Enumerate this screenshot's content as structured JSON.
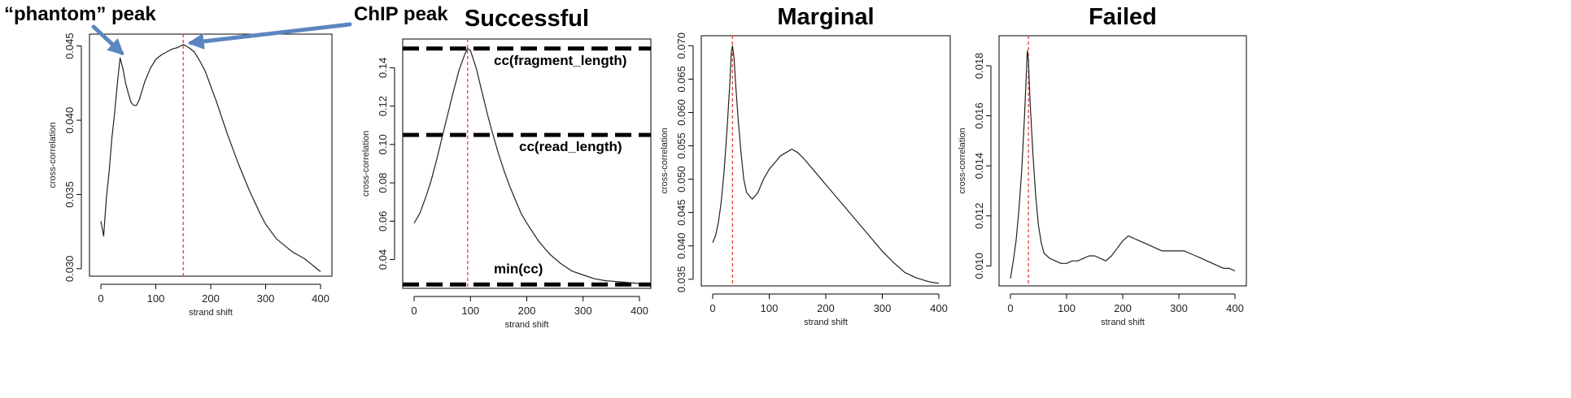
{
  "chart_data": [
    {
      "type": "line",
      "title": "",
      "xlabel": "strand shift",
      "ylabel": "cross-correlation",
      "xlim": [
        0,
        400
      ],
      "ylim": [
        0.0295,
        0.0458
      ],
      "xticks": [
        0,
        100,
        200,
        300,
        400
      ],
      "yticks": [
        0.03,
        0.035,
        0.04,
        0.045
      ],
      "ytick_labels": [
        "0.030",
        "0.035",
        "0.040",
        "0.045"
      ],
      "x": [
        0,
        5,
        10,
        15,
        20,
        25,
        30,
        35,
        40,
        45,
        50,
        55,
        60,
        65,
        70,
        75,
        80,
        90,
        100,
        110,
        120,
        130,
        140,
        150,
        160,
        170,
        180,
        190,
        200,
        210,
        220,
        230,
        240,
        250,
        260,
        270,
        280,
        290,
        300,
        310,
        320,
        330,
        340,
        350,
        360,
        370,
        380,
        390,
        400
      ],
      "y": [
        0.0332,
        0.0322,
        0.0348,
        0.0365,
        0.0388,
        0.0405,
        0.0425,
        0.0442,
        0.0435,
        0.0425,
        0.0418,
        0.0412,
        0.041,
        0.041,
        0.0414,
        0.042,
        0.0426,
        0.0435,
        0.0441,
        0.0444,
        0.0446,
        0.0448,
        0.0449,
        0.0451,
        0.0449,
        0.0446,
        0.044,
        0.0433,
        0.0423,
        0.0413,
        0.0402,
        0.0391,
        0.0381,
        0.0371,
        0.0362,
        0.0353,
        0.0345,
        0.0337,
        0.033,
        0.0325,
        0.032,
        0.0317,
        0.0314,
        0.0311,
        0.0309,
        0.0307,
        0.0304,
        0.0301,
        0.0298
      ],
      "vline_x": 150,
      "hlines": [],
      "annotations": [
        {
          "text": "“phantom” peak",
          "target_x": 35,
          "target_y": 0.0442
        },
        {
          "text": "ChIP peak",
          "target_x": 152,
          "target_y": 0.0451
        }
      ]
    },
    {
      "type": "line",
      "title": "Successful",
      "xlabel": "strand shift",
      "ylabel": "cross-correlation",
      "xlim": [
        0,
        400
      ],
      "ylim": [
        0.025,
        0.155
      ],
      "xticks": [
        0,
        100,
        200,
        300,
        400
      ],
      "yticks": [
        0.04,
        0.06,
        0.08,
        0.1,
        0.12,
        0.14
      ],
      "ytick_labels": [
        "0.04",
        "0.06",
        "0.08",
        "0.10",
        "0.12",
        "0.14"
      ],
      "x": [
        0,
        10,
        20,
        30,
        40,
        50,
        60,
        70,
        80,
        90,
        95,
        100,
        110,
        120,
        130,
        140,
        150,
        160,
        170,
        180,
        190,
        200,
        220,
        240,
        260,
        280,
        300,
        320,
        340,
        360,
        380,
        400
      ],
      "y": [
        0.059,
        0.064,
        0.072,
        0.081,
        0.092,
        0.104,
        0.116,
        0.128,
        0.139,
        0.147,
        0.15,
        0.149,
        0.14,
        0.128,
        0.116,
        0.105,
        0.095,
        0.086,
        0.078,
        0.071,
        0.064,
        0.059,
        0.05,
        0.043,
        0.038,
        0.034,
        0.032,
        0.03,
        0.029,
        0.0285,
        0.028,
        0.0275
      ],
      "vline_x": 95,
      "hlines": [
        {
          "y": 0.15,
          "label": "cc(fragment_length)"
        },
        {
          "y": 0.105,
          "label": "cc(read_length)"
        },
        {
          "y": 0.027,
          "label": "min(cc)"
        }
      ],
      "annotations": []
    },
    {
      "type": "line",
      "title": "Marginal",
      "xlabel": "strand shift",
      "ylabel": "cross-correlation",
      "xlim": [
        0,
        400
      ],
      "ylim": [
        0.034,
        0.0715
      ],
      "xticks": [
        0,
        100,
        200,
        300,
        400
      ],
      "yticks": [
        0.035,
        0.04,
        0.045,
        0.05,
        0.055,
        0.06,
        0.065,
        0.07
      ],
      "ytick_labels": [
        "0.035",
        "0.040",
        "0.045",
        "0.050",
        "0.055",
        "0.060",
        "0.065",
        "0.070"
      ],
      "x": [
        0,
        5,
        10,
        15,
        20,
        25,
        30,
        33,
        35,
        38,
        40,
        45,
        50,
        55,
        60,
        70,
        80,
        90,
        100,
        110,
        120,
        130,
        140,
        150,
        160,
        170,
        180,
        200,
        220,
        240,
        260,
        280,
        300,
        320,
        340,
        360,
        380,
        390,
        400
      ],
      "y": [
        0.0405,
        0.0415,
        0.0435,
        0.0465,
        0.051,
        0.057,
        0.064,
        0.069,
        0.07,
        0.068,
        0.065,
        0.059,
        0.054,
        0.05,
        0.048,
        0.047,
        0.048,
        0.05,
        0.0515,
        0.0525,
        0.0535,
        0.054,
        0.0545,
        0.054,
        0.0532,
        0.0522,
        0.0512,
        0.0492,
        0.0472,
        0.0452,
        0.0432,
        0.0412,
        0.0392,
        0.0375,
        0.036,
        0.0352,
        0.0347,
        0.0345,
        0.0344
      ],
      "vline_x": 35,
      "hlines": [],
      "annotations": []
    },
    {
      "type": "line",
      "title": "Failed",
      "xlabel": "strand shift",
      "ylabel": "cross-correlation",
      "xlim": [
        0,
        400
      ],
      "ylim": [
        0.0092,
        0.0192
      ],
      "xticks": [
        0,
        100,
        200,
        300,
        400
      ],
      "yticks": [
        0.01,
        0.012,
        0.014,
        0.016,
        0.018
      ],
      "ytick_labels": [
        "0.010",
        "0.012",
        "0.014",
        "0.016",
        "0.018"
      ],
      "x": [
        0,
        5,
        10,
        15,
        20,
        25,
        28,
        30,
        32,
        35,
        40,
        45,
        50,
        55,
        60,
        70,
        80,
        90,
        100,
        110,
        120,
        130,
        140,
        150,
        160,
        170,
        180,
        190,
        200,
        210,
        220,
        230,
        240,
        250,
        260,
        270,
        280,
        290,
        300,
        310,
        320,
        330,
        340,
        350,
        360,
        370,
        380,
        390,
        400
      ],
      "y": [
        0.0095,
        0.0102,
        0.011,
        0.0122,
        0.0138,
        0.016,
        0.0175,
        0.0186,
        0.0182,
        0.0165,
        0.0145,
        0.0128,
        0.0116,
        0.0109,
        0.0105,
        0.0103,
        0.0102,
        0.0101,
        0.0101,
        0.0102,
        0.0102,
        0.0103,
        0.0104,
        0.0104,
        0.0103,
        0.0102,
        0.0104,
        0.0107,
        0.011,
        0.0112,
        0.0111,
        0.011,
        0.0109,
        0.0108,
        0.0107,
        0.0106,
        0.0106,
        0.0106,
        0.0106,
        0.0106,
        0.0105,
        0.0104,
        0.0103,
        0.0102,
        0.0101,
        0.01,
        0.0099,
        0.0099,
        0.0098
      ],
      "vline_x": 32,
      "hlines": [],
      "annotations": []
    }
  ]
}
